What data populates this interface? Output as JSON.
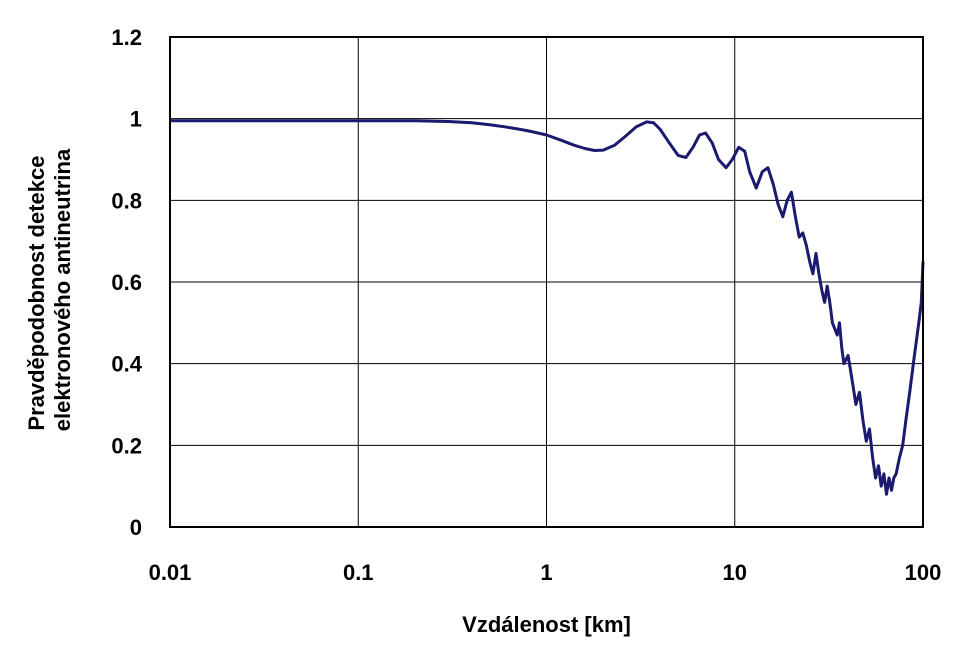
{
  "chart_data": {
    "type": "line",
    "title": "",
    "xlabel": "Vzdálenost [km]",
    "ylabel_lines": [
      "Pravděpodobnost detekce",
      "elektronového antineutrina"
    ],
    "x_scale": "log",
    "xlim": [
      0.01,
      100
    ],
    "ylim": [
      0,
      1.2
    ],
    "x_ticks": [
      0.01,
      0.1,
      1,
      10,
      100
    ],
    "x_tick_labels": [
      "0.01",
      "0.1",
      "1",
      "10",
      "100"
    ],
    "y_ticks": [
      0,
      0.2,
      0.4,
      0.6,
      0.8,
      1,
      1.2
    ],
    "y_tick_labels": [
      "0",
      "0.2",
      "0.4",
      "0.6",
      "0.8",
      "1",
      "1.2"
    ],
    "grid": true,
    "legend": "none",
    "series": [
      {
        "color": "#1a1a6e",
        "x": [
          0.01,
          0.03,
          0.1,
          0.2,
          0.3,
          0.4,
          0.5,
          0.6,
          0.7,
          0.8,
          0.9,
          1.0,
          1.2,
          1.4,
          1.6,
          1.8,
          2.0,
          2.3,
          2.6,
          3.0,
          3.4,
          3.7,
          4.0,
          4.5,
          5.0,
          5.5,
          6.0,
          6.5,
          7.0,
          7.6,
          8.2,
          9.0,
          9.7,
          10.5,
          11.3,
          12.0,
          13.0,
          14.0,
          15.0,
          16.0,
          17.0,
          18.0,
          19.0,
          20.0,
          21.0,
          22.0,
          23.0,
          24.0,
          25.0,
          26.0,
          27.0,
          28.0,
          29.0,
          30.0,
          31.0,
          32.0,
          33.0,
          35.0,
          36.0,
          37.0,
          38.0,
          40.0,
          42.0,
          44.0,
          46.0,
          48.0,
          50.0,
          52.0,
          54.0,
          56.0,
          58.0,
          60.0,
          62.0,
          64.0,
          66.0,
          68.0,
          70.0,
          72.0,
          75.0,
          78.0,
          81.0,
          85.0,
          90.0,
          95.0,
          98.0,
          100.0
        ],
        "y": [
          0.995,
          0.995,
          0.995,
          0.995,
          0.993,
          0.99,
          0.985,
          0.98,
          0.975,
          0.97,
          0.965,
          0.96,
          0.947,
          0.935,
          0.927,
          0.922,
          0.923,
          0.935,
          0.955,
          0.98,
          0.992,
          0.99,
          0.975,
          0.94,
          0.91,
          0.905,
          0.93,
          0.96,
          0.965,
          0.94,
          0.9,
          0.88,
          0.9,
          0.93,
          0.92,
          0.87,
          0.83,
          0.87,
          0.88,
          0.84,
          0.79,
          0.76,
          0.8,
          0.82,
          0.76,
          0.71,
          0.72,
          0.69,
          0.65,
          0.62,
          0.67,
          0.62,
          0.58,
          0.55,
          0.59,
          0.55,
          0.5,
          0.47,
          0.5,
          0.44,
          0.4,
          0.42,
          0.36,
          0.3,
          0.33,
          0.26,
          0.21,
          0.24,
          0.17,
          0.12,
          0.15,
          0.1,
          0.13,
          0.08,
          0.12,
          0.09,
          0.12,
          0.13,
          0.17,
          0.2,
          0.26,
          0.33,
          0.42,
          0.5,
          0.55,
          0.65
        ]
      }
    ]
  }
}
